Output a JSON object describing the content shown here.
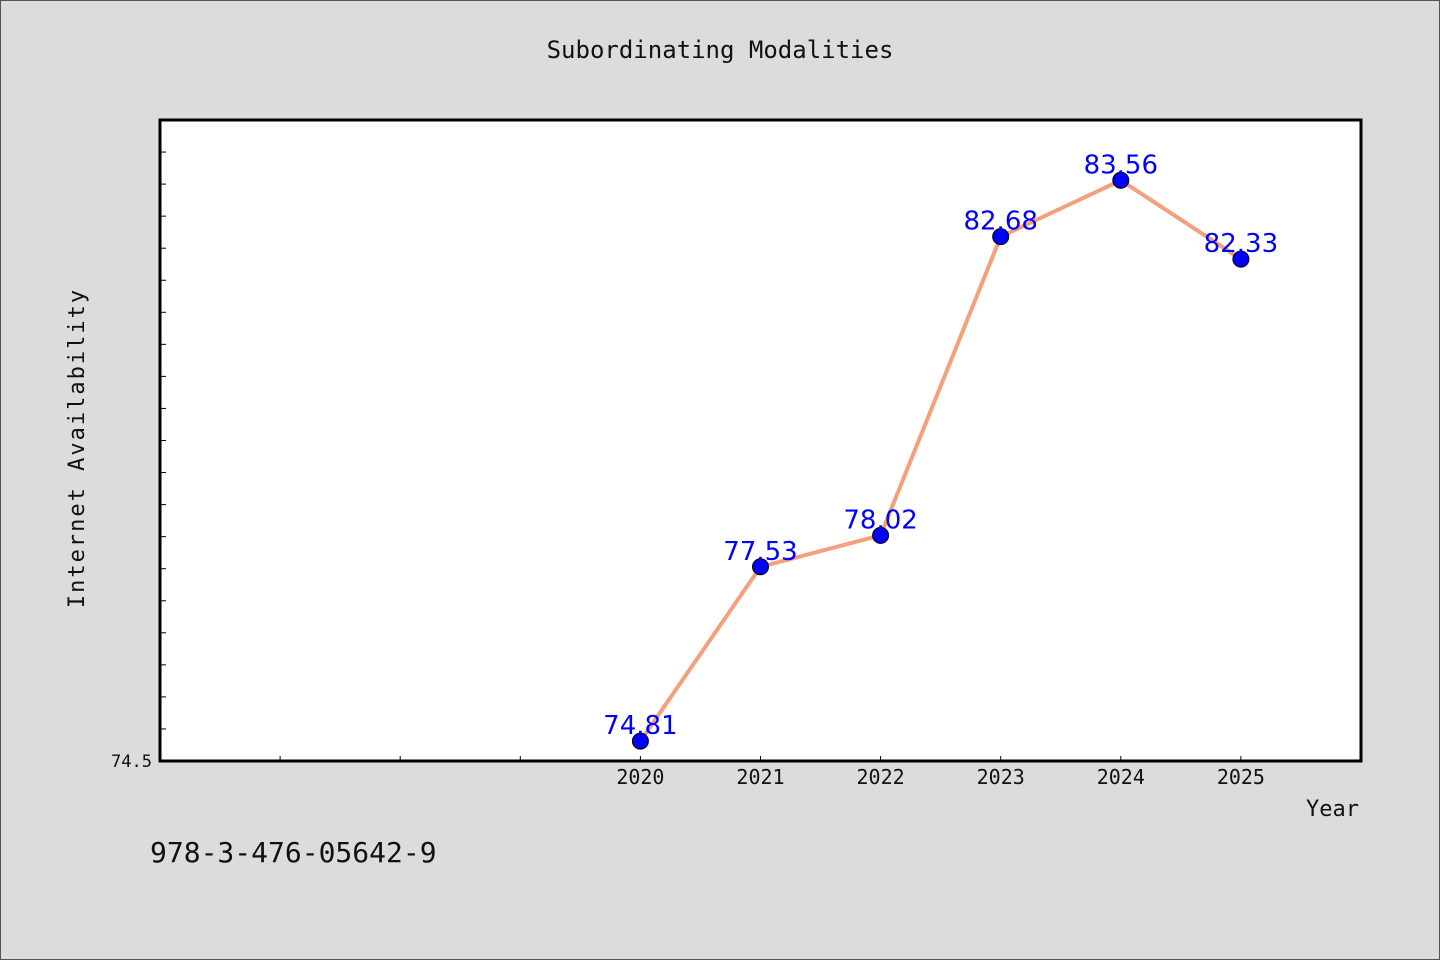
{
  "chart_data": {
    "type": "line",
    "title": "Subordinating Modalities",
    "xlabel": "Year",
    "ylabel": "Internet Availability",
    "x": [
      2020,
      2021,
      2022,
      2023,
      2024,
      2025
    ],
    "series": [
      {
        "values": [
          74.81,
          77.53,
          78.02,
          82.68,
          83.56,
          82.33
        ]
      }
    ],
    "data_labels": [
      "74.81",
      "77.53",
      "78.02",
      "82.68",
      "83.56",
      "82.33"
    ],
    "xlim": [
      2016,
      2026
    ],
    "ylim": [
      74.5,
      84.5
    ],
    "y_tick_labels": [
      "74.5"
    ],
    "x_tick_labels": [
      "2020",
      "2021",
      "2022",
      "2023",
      "2024",
      "2025"
    ],
    "grid": false,
    "legend": "none",
    "colors": {
      "line": "#f4a07c",
      "marker": "#0000ff",
      "label": "#0000ff"
    }
  },
  "footer": {
    "isbn": "978-3-476-05642-9"
  }
}
